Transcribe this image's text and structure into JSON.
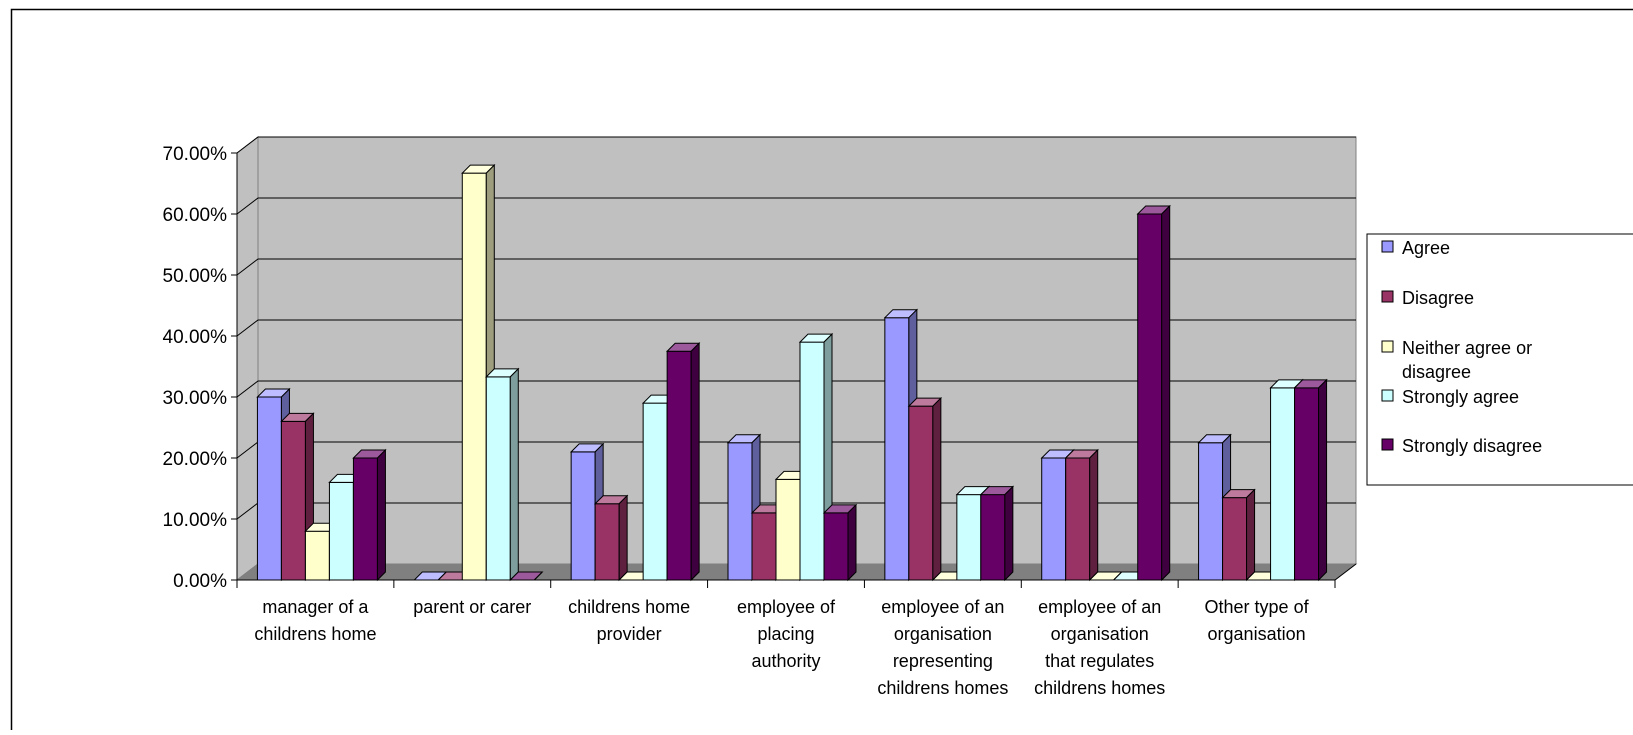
{
  "chart_data": {
    "type": "bar",
    "title": "",
    "xlabel": "",
    "ylabel": "",
    "ylim": [
      0,
      0.7
    ],
    "y_ticks": [
      0,
      0.1,
      0.2,
      0.3,
      0.4,
      0.5,
      0.6,
      0.7
    ],
    "y_tick_labels": [
      "0.00%",
      "10.00%",
      "20.00%",
      "30.00%",
      "40.00%",
      "50.00%",
      "60.00%",
      "70.00%"
    ],
    "grid": true,
    "legend_position": "right",
    "categories": [
      [
        "manager of a",
        "childrens home"
      ],
      [
        "parent or carer"
      ],
      [
        "childrens home",
        "provider"
      ],
      [
        "employee of",
        "placing",
        "authority"
      ],
      [
        "employee of an",
        "organisation",
        "representing",
        "childrens homes"
      ],
      [
        "employee of an",
        "organisation",
        "that regulates",
        "childrens homes"
      ],
      [
        "Other type of",
        "organisation"
      ]
    ],
    "series": [
      {
        "name": "Agree",
        "legend_lines": [
          "Agree"
        ],
        "color": "#9999FF",
        "values": [
          0.3,
          0.0,
          0.21,
          0.225,
          0.43,
          0.2,
          0.225
        ]
      },
      {
        "name": "Disagree",
        "legend_lines": [
          "Disagree"
        ],
        "color": "#993366",
        "values": [
          0.26,
          0.0,
          0.125,
          0.11,
          0.285,
          0.2,
          0.135
        ]
      },
      {
        "name": "Neither agree or disagree",
        "legend_lines": [
          "Neither agree or",
          "disagree"
        ],
        "color": "#FFFFCC",
        "values": [
          0.08,
          0.667,
          0.0,
          0.165,
          0.0,
          0.0,
          0.0
        ]
      },
      {
        "name": "Strongly agree",
        "legend_lines": [
          "Strongly agree"
        ],
        "color": "#CCFFFF",
        "values": [
          0.16,
          0.333,
          0.29,
          0.39,
          0.14,
          0.0,
          0.315
        ]
      },
      {
        "name": "Strongly disagree",
        "legend_lines": [
          "Strongly disagree"
        ],
        "color": "#660066",
        "values": [
          0.2,
          0.0,
          0.375,
          0.11,
          0.14,
          0.6,
          0.315
        ]
      }
    ]
  }
}
